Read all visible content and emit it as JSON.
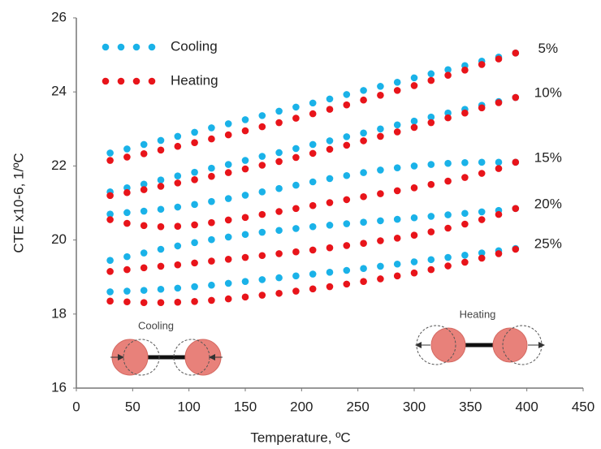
{
  "chart_data": {
    "type": "scatter",
    "x_label": "Temperature, ºC",
    "y_label": "CTE x10-6, 1/ºC",
    "xlim": [
      0,
      450
    ],
    "xticks": [
      0,
      50,
      100,
      150,
      200,
      250,
      300,
      350,
      400,
      450
    ],
    "ylim": [
      16,
      26
    ],
    "yticks": [
      16,
      18,
      20,
      22,
      24,
      26
    ],
    "grid": false,
    "legend": "upper left",
    "x": [
      30,
      45,
      60,
      75,
      90,
      105,
      120,
      135,
      150,
      165,
      180,
      195,
      210,
      225,
      240,
      255,
      270,
      285,
      300,
      315,
      330,
      345,
      360,
      375,
      390
    ],
    "series": [
      {
        "name": "Cooling",
        "color": "#1ab2e8",
        "curves": [
          {
            "label": "5%",
            "values": [
              22.35,
              22.46,
              22.58,
              22.69,
              22.8,
              22.91,
              23.03,
              23.14,
              23.25,
              23.36,
              23.48,
              23.59,
              23.7,
              23.81,
              23.93,
              24.04,
              24.15,
              24.26,
              24.38,
              24.49,
              24.6,
              24.71,
              24.83,
              24.94,
              25.05
            ]
          },
          {
            "label": "10%",
            "values": [
              21.3,
              21.41,
              21.51,
              21.62,
              21.73,
              21.83,
              21.94,
              22.04,
              22.15,
              22.26,
              22.36,
              22.47,
              22.58,
              22.68,
              22.79,
              22.89,
              23.0,
              23.11,
              23.21,
              23.32,
              23.43,
              23.53,
              23.64,
              23.74,
              23.85
            ]
          },
          {
            "label": "15%",
            "values": [
              20.7,
              20.74,
              20.78,
              20.83,
              20.89,
              20.96,
              21.04,
              21.12,
              21.21,
              21.3,
              21.39,
              21.48,
              21.57,
              21.66,
              21.74,
              21.82,
              21.89,
              21.95,
              22.0,
              22.04,
              22.07,
              22.09,
              22.1,
              22.1,
              22.1
            ]
          },
          {
            "label": "20%",
            "values": [
              19.45,
              19.55,
              19.65,
              19.75,
              19.84,
              19.93,
              20.01,
              20.08,
              20.15,
              20.21,
              20.26,
              20.31,
              20.36,
              20.4,
              20.44,
              20.48,
              20.52,
              20.56,
              20.6,
              20.64,
              20.68,
              20.72,
              20.76,
              20.8,
              20.85
            ]
          },
          {
            "label": "25%",
            "values": [
              18.6,
              18.62,
              18.64,
              18.67,
              18.7,
              18.74,
              18.78,
              18.83,
              18.88,
              18.93,
              18.98,
              19.03,
              19.08,
              19.13,
              19.18,
              19.23,
              19.29,
              19.35,
              19.41,
              19.47,
              19.53,
              19.59,
              19.65,
              19.71,
              19.77
            ]
          }
        ]
      },
      {
        "name": "Heating",
        "color": "#e8141a",
        "curves": [
          {
            "values": [
              22.15,
              22.24,
              22.33,
              22.43,
              22.53,
              22.63,
              22.73,
              22.84,
              22.95,
              23.06,
              23.17,
              23.29,
              23.41,
              23.53,
              23.65,
              23.78,
              23.91,
              24.04,
              24.17,
              24.31,
              24.45,
              24.59,
              24.74,
              24.89,
              25.05
            ]
          },
          {
            "values": [
              21.2,
              21.28,
              21.36,
              21.45,
              21.54,
              21.63,
              21.72,
              21.82,
              21.92,
              22.02,
              22.12,
              22.23,
              22.34,
              22.45,
              22.56,
              22.68,
              22.8,
              22.92,
              23.04,
              23.17,
              23.3,
              23.43,
              23.57,
              23.71,
              23.85
            ]
          },
          {
            "values": [
              20.55,
              20.45,
              20.39,
              20.36,
              20.37,
              20.41,
              20.47,
              20.54,
              20.61,
              20.69,
              20.77,
              20.85,
              20.93,
              21.01,
              21.09,
              21.17,
              21.25,
              21.33,
              21.41,
              21.5,
              21.59,
              21.69,
              21.8,
              21.93,
              22.1
            ]
          },
          {
            "values": [
              19.15,
              19.2,
              19.25,
              19.29,
              19.33,
              19.38,
              19.43,
              19.48,
              19.53,
              19.58,
              19.63,
              19.68,
              19.73,
              19.79,
              19.85,
              19.91,
              19.98,
              20.05,
              20.13,
              20.22,
              20.32,
              20.43,
              20.55,
              20.69,
              20.85
            ]
          },
          {
            "values": [
              18.35,
              18.33,
              18.31,
              18.31,
              18.32,
              18.34,
              18.37,
              18.41,
              18.46,
              18.51,
              18.56,
              18.62,
              18.68,
              18.74,
              18.81,
              18.88,
              18.95,
              19.03,
              19.11,
              19.2,
              19.3,
              19.4,
              19.51,
              19.63,
              19.75
            ]
          }
        ]
      }
    ],
    "illustrations": {
      "cooling": "Cooling",
      "heating": "Heating"
    }
  }
}
